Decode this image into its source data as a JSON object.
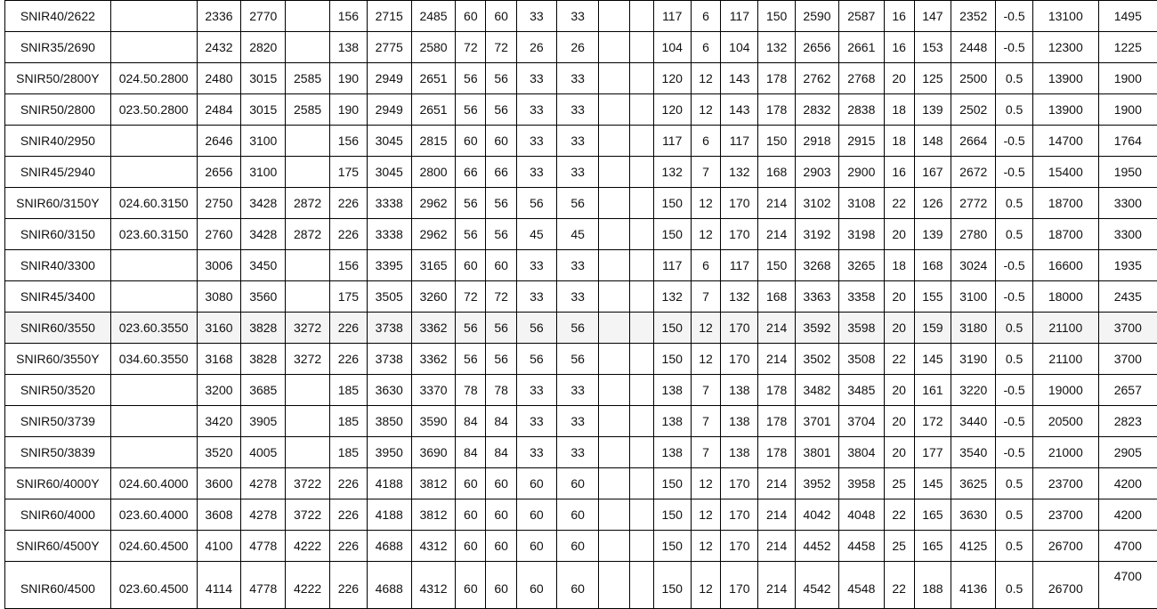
{
  "table": {
    "highlighted_row": 10,
    "rows": [
      [
        "SNIR40/2622",
        "",
        "2336",
        "2770",
        "",
        "156",
        "2715",
        "2485",
        "60",
        "60",
        "33",
        "33",
        "",
        "",
        "117",
        "6",
        "117",
        "150",
        "2590",
        "2587",
        "16",
        "147",
        "2352",
        "-0.5",
        "13100",
        "1495"
      ],
      [
        "SNIR35/2690",
        "",
        "2432",
        "2820",
        "",
        "138",
        "2775",
        "2580",
        "72",
        "72",
        "26",
        "26",
        "",
        "",
        "104",
        "6",
        "104",
        "132",
        "2656",
        "2661",
        "16",
        "153",
        "2448",
        "-0.5",
        "12300",
        "1225"
      ],
      [
        "SNIR50/2800Y",
        "024.50.2800",
        "2480",
        "3015",
        "2585",
        "190",
        "2949",
        "2651",
        "56",
        "56",
        "33",
        "33",
        "",
        "",
        "120",
        "12",
        "143",
        "178",
        "2762",
        "2768",
        "20",
        "125",
        "2500",
        "0.5",
        "13900",
        "1900"
      ],
      [
        "SNIR50/2800",
        "023.50.2800",
        "2484",
        "3015",
        "2585",
        "190",
        "2949",
        "2651",
        "56",
        "56",
        "33",
        "33",
        "",
        "",
        "120",
        "12",
        "143",
        "178",
        "2832",
        "2838",
        "18",
        "139",
        "2502",
        "0.5",
        "13900",
        "1900"
      ],
      [
        "SNIR40/2950",
        "",
        "2646",
        "3100",
        "",
        "156",
        "3045",
        "2815",
        "60",
        "60",
        "33",
        "33",
        "",
        "",
        "117",
        "6",
        "117",
        "150",
        "2918",
        "2915",
        "18",
        "148",
        "2664",
        "-0.5",
        "14700",
        "1764"
      ],
      [
        "SNIR45/2940",
        "",
        "2656",
        "3100",
        "",
        "175",
        "3045",
        "2800",
        "66",
        "66",
        "33",
        "33",
        "",
        "",
        "132",
        "7",
        "132",
        "168",
        "2903",
        "2900",
        "16",
        "167",
        "2672",
        "-0.5",
        "15400",
        "1950"
      ],
      [
        "SNIR60/3150Y",
        "024.60.3150",
        "2750",
        "3428",
        "2872",
        "226",
        "3338",
        "2962",
        "56",
        "56",
        "56",
        "56",
        "",
        "",
        "150",
        "12",
        "170",
        "214",
        "3102",
        "3108",
        "22",
        "126",
        "2772",
        "0.5",
        "18700",
        "3300"
      ],
      [
        "SNIR60/3150",
        "023.60.3150",
        "2760",
        "3428",
        "2872",
        "226",
        "3338",
        "2962",
        "56",
        "56",
        "45",
        "45",
        "",
        "",
        "150",
        "12",
        "170",
        "214",
        "3192",
        "3198",
        "20",
        "139",
        "2780",
        "0.5",
        "18700",
        "3300"
      ],
      [
        "SNIR40/3300",
        "",
        "3006",
        "3450",
        "",
        "156",
        "3395",
        "3165",
        "60",
        "60",
        "33",
        "33",
        "",
        "",
        "117",
        "6",
        "117",
        "150",
        "3268",
        "3265",
        "18",
        "168",
        "3024",
        "-0.5",
        "16600",
        "1935"
      ],
      [
        "SNIR45/3400",
        "",
        "3080",
        "3560",
        "",
        "175",
        "3505",
        "3260",
        "72",
        "72",
        "33",
        "33",
        "",
        "",
        "132",
        "7",
        "132",
        "168",
        "3363",
        "3358",
        "20",
        "155",
        "3100",
        "-0.5",
        "18000",
        "2435"
      ],
      [
        "SNIR60/3550",
        "023.60.3550",
        "3160",
        "3828",
        "3272",
        "226",
        "3738",
        "3362",
        "56",
        "56",
        "56",
        "56",
        "",
        "",
        "150",
        "12",
        "170",
        "214",
        "3592",
        "3598",
        "20",
        "159",
        "3180",
        "0.5",
        "21100",
        "3700"
      ],
      [
        "SNIR60/3550Y",
        "034.60.3550",
        "3168",
        "3828",
        "3272",
        "226",
        "3738",
        "3362",
        "56",
        "56",
        "56",
        "56",
        "",
        "",
        "150",
        "12",
        "170",
        "214",
        "3502",
        "3508",
        "22",
        "145",
        "3190",
        "0.5",
        "21100",
        "3700"
      ],
      [
        "SNIR50/3520",
        "",
        "3200",
        "3685",
        "",
        "185",
        "3630",
        "3370",
        "78",
        "78",
        "33",
        "33",
        "",
        "",
        "138",
        "7",
        "138",
        "178",
        "3482",
        "3485",
        "20",
        "161",
        "3220",
        "-0.5",
        "19000",
        "2657"
      ],
      [
        "SNIR50/3739",
        "",
        "3420",
        "3905",
        "",
        "185",
        "3850",
        "3590",
        "84",
        "84",
        "33",
        "33",
        "",
        "",
        "138",
        "7",
        "138",
        "178",
        "3701",
        "3704",
        "20",
        "172",
        "3440",
        "-0.5",
        "20500",
        "2823"
      ],
      [
        "SNIR50/3839",
        "",
        "3520",
        "4005",
        "",
        "185",
        "3950",
        "3690",
        "84",
        "84",
        "33",
        "33",
        "",
        "",
        "138",
        "7",
        "138",
        "178",
        "3801",
        "3804",
        "20",
        "177",
        "3540",
        "-0.5",
        "21000",
        "2905"
      ],
      [
        "SNIR60/4000Y",
        "024.60.4000",
        "3600",
        "4278",
        "3722",
        "226",
        "4188",
        "3812",
        "60",
        "60",
        "60",
        "60",
        "",
        "",
        "150",
        "12",
        "170",
        "214",
        "3952",
        "3958",
        "25",
        "145",
        "3625",
        "0.5",
        "23700",
        "4200"
      ],
      [
        "SNIR60/4000",
        "023.60.4000",
        "3608",
        "4278",
        "3722",
        "226",
        "4188",
        "3812",
        "60",
        "60",
        "60",
        "60",
        "",
        "",
        "150",
        "12",
        "170",
        "214",
        "4042",
        "4048",
        "22",
        "165",
        "3630",
        "0.5",
        "23700",
        "4200"
      ],
      [
        "SNIR60/4500Y",
        "024.60.4500",
        "4100",
        "4778",
        "4222",
        "226",
        "4688",
        "4312",
        "60",
        "60",
        "60",
        "60",
        "",
        "",
        "150",
        "12",
        "170",
        "214",
        "4452",
        "4458",
        "25",
        "165",
        "4125",
        "0.5",
        "26700",
        "4700"
      ],
      [
        "SNIR60/4500",
        "023.60.4500",
        "4114",
        "4778",
        "4222",
        "226",
        "4688",
        "4312",
        "60",
        "60",
        "60",
        "60",
        "",
        "",
        "150",
        "12",
        "170",
        "214",
        "4542",
        "4548",
        "22",
        "188",
        "4136",
        "0.5",
        "26700",
        "4700"
      ]
    ]
  }
}
